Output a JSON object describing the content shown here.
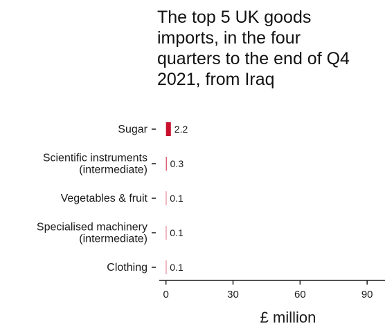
{
  "chart_data": {
    "type": "bar",
    "orientation": "horizontal",
    "title_lines": [
      "The top 5 UK goods",
      "imports, in the four",
      "quarters to the end of Q4",
      "2021, from Iraq"
    ],
    "categories": [
      [
        "Sugar"
      ],
      [
        "Scientific instruments",
        "(intermediate)"
      ],
      [
        "Vegetables & fruit"
      ],
      [
        "Specialised machinery",
        "(intermediate)"
      ],
      [
        "Clothing"
      ]
    ],
    "values": [
      2.2,
      0.3,
      0.1,
      0.1,
      0.1
    ],
    "value_labels": [
      "2.2",
      "0.3",
      "0.1",
      "0.1",
      "0.1"
    ],
    "xlabel": "£ million",
    "xlim": [
      -3,
      98
    ],
    "xticks": [
      0,
      30,
      60,
      90
    ],
    "bar_color": "#c8102e",
    "grid": false,
    "legend": "none"
  }
}
